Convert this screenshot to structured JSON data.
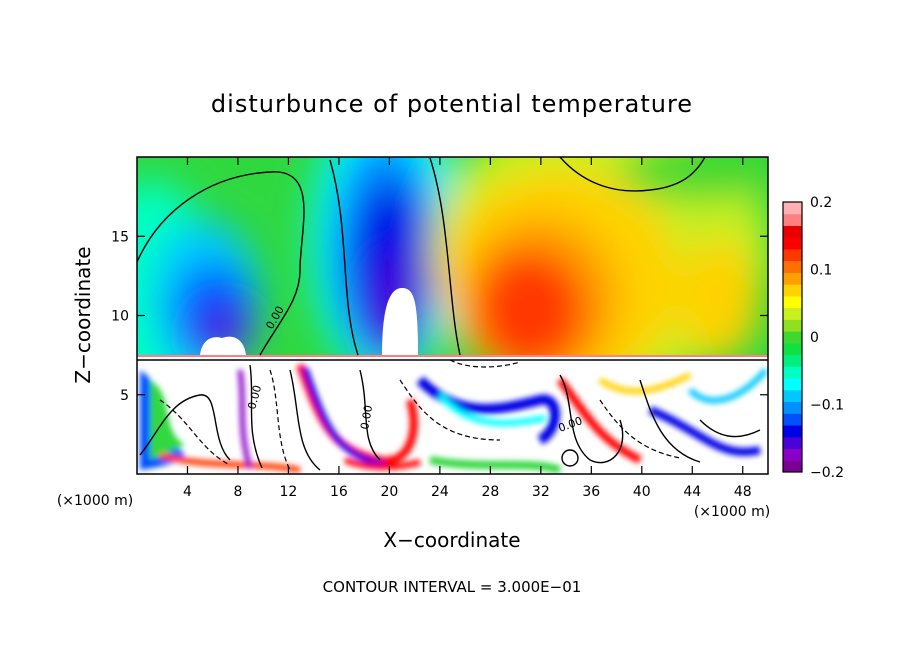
{
  "chart_data": {
    "type": "heatmap",
    "title": "disturbunce of potential temperature",
    "xlabel": "X−coordinate",
    "ylabel": "Z−coordinate",
    "x_unit_left": "(×1000 m)",
    "x_unit_right": "(×1000 m)",
    "xlim": [
      0,
      50
    ],
    "ylim": [
      0,
      20
    ],
    "x_ticks": [
      4,
      8,
      12,
      16,
      20,
      24,
      28,
      32,
      36,
      40,
      44,
      48
    ],
    "y_ticks": [
      5,
      10,
      15
    ],
    "contour_labels": [
      "0.00",
      "0.00",
      "0.00",
      "0.00"
    ],
    "footer": "CONTOUR INTERVAL = 3.000E−01",
    "colorbar": {
      "range": [
        -0.2,
        0.2
      ],
      "tick_labels": [
        "0.2",
        "0.1",
        "0",
        "−0.1",
        "−0.2"
      ],
      "tick_values": [
        0.2,
        0.1,
        0,
        -0.1,
        -0.2
      ],
      "colors": [
        "#7a0094",
        "#8a00c8",
        "#4b00d8",
        "#0000e6",
        "#0050ff",
        "#0090ff",
        "#00c8ff",
        "#00ffff",
        "#00ffc0",
        "#00f080",
        "#10e040",
        "#40d830",
        "#90e020",
        "#c8f020",
        "#ffff00",
        "#ffd200",
        "#ffa000",
        "#ff7000",
        "#ff3800",
        "#ff0000",
        "#e80000",
        "#ff8080",
        "#ffb0b0"
      ]
    },
    "grid": false
  }
}
